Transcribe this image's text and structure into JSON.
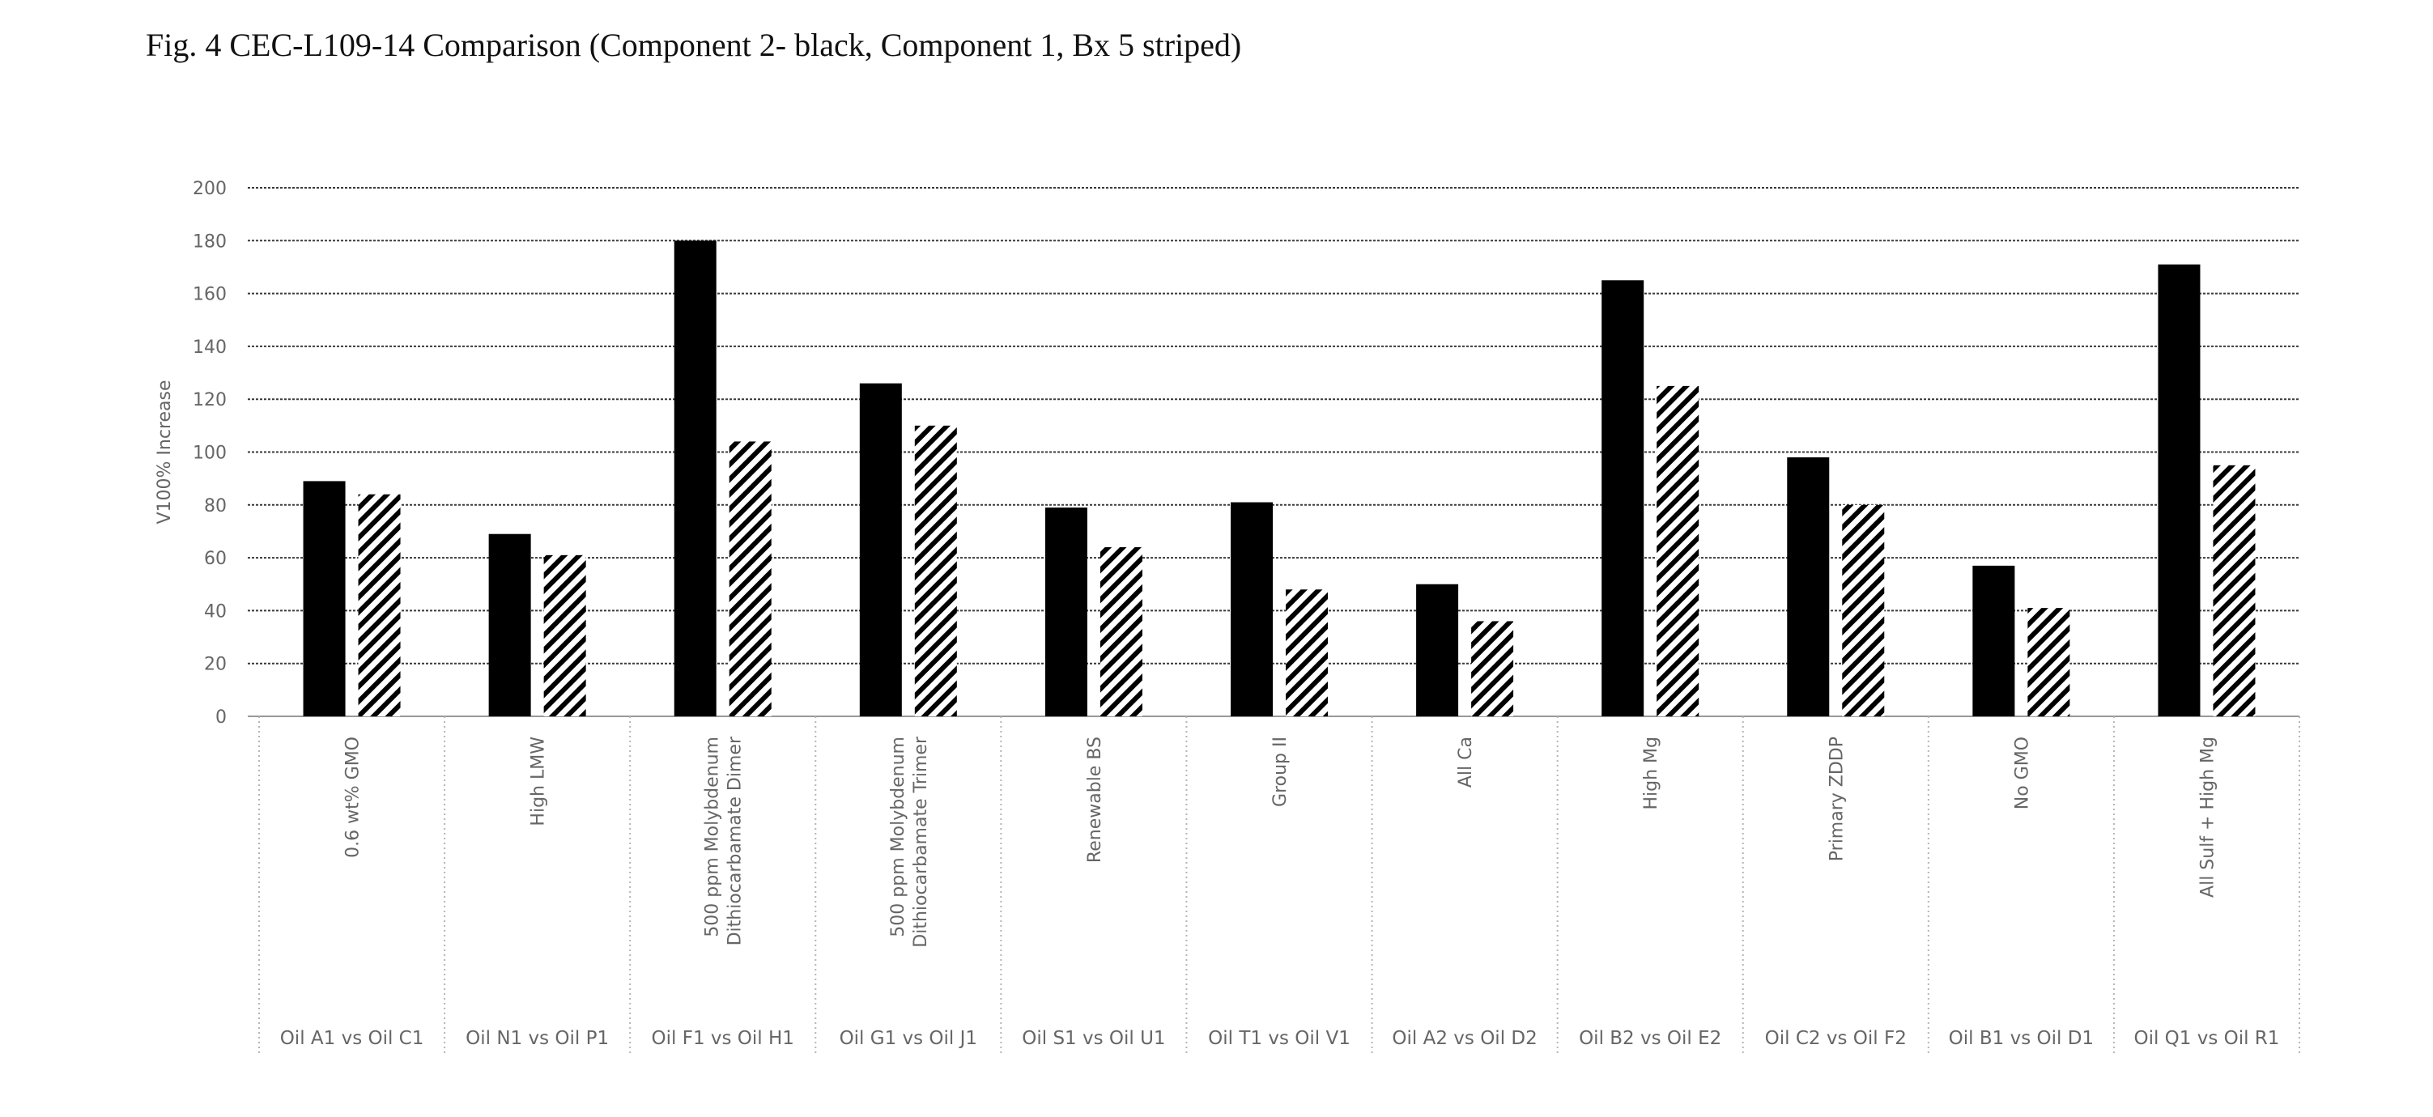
{
  "title": "Fig. 4 CEC-L109-14 Comparison (Component 2- black, Component 1, Bx 5 striped)",
  "chart_data": {
    "type": "bar",
    "ylabel": "V100% Increase",
    "ylim": [
      0,
      200
    ],
    "yticks": [
      0,
      20,
      40,
      60,
      80,
      100,
      120,
      140,
      160,
      180,
      200
    ],
    "grid": true,
    "categories": [
      "0.6 wt% GMO",
      "High LMW",
      "500 ppm Molybdenum Dithiocarbamate Dimer",
      "500 ppm Molybdenum Dithiocarbamate Trimer",
      "Renewable BS",
      "Group II",
      "All Ca",
      "High Mg",
      "Primary ZDDP",
      "No GMO",
      "All Sulf + High Mg"
    ],
    "comparisons": [
      "Oil A1 vs Oil C1",
      "Oil N1 vs Oil P1",
      "Oil F1 vs Oil H1",
      "Oil G1 vs Oil J1",
      "Oil S1 vs Oil U1",
      "Oil T1 vs Oil V1",
      "Oil A2 vs Oil D2",
      "Oil B2 vs Oil E2",
      "Oil C2 vs Oil F2",
      "Oil B1 vs Oil D1",
      "Oil Q1 vs Oil R1"
    ],
    "series": [
      {
        "fill": "black",
        "values": [
          89,
          69,
          180,
          126,
          79,
          81,
          50,
          165,
          98,
          57,
          171
        ]
      },
      {
        "fill": "striped",
        "values": [
          84,
          61,
          104,
          110,
          64,
          48,
          36,
          125,
          80,
          41,
          95
        ]
      }
    ]
  }
}
